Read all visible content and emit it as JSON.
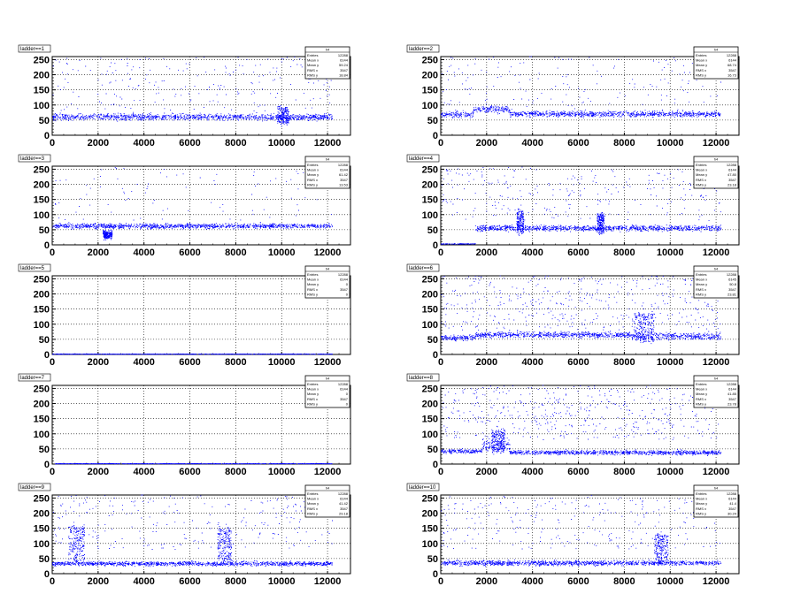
{
  "chart_data": [
    {
      "type": "scatter",
      "title": "ladder==1",
      "xlim": [
        0,
        13000
      ],
      "ylim": [
        0,
        260
      ],
      "xticks": [
        0,
        2000,
        4000,
        6000,
        8000,
        10000,
        12000
      ],
      "yticks": [
        0,
        50,
        100,
        150,
        200,
        250
      ],
      "grid": true,
      "stats": {
        "name": "h4",
        "rows": [
          [
            "Entries",
            "12288"
          ],
          [
            "Mean x",
            "6144"
          ],
          [
            "Mean y",
            "59.24"
          ],
          [
            "RMS x",
            "3547"
          ],
          [
            "RMS y",
            "18.84"
          ]
        ]
      },
      "bands": [
        {
          "x0": 0,
          "x1": 12200,
          "y": 60,
          "spread": 9,
          "density": 1
        }
      ],
      "bumps": [
        {
          "x0": 9800,
          "x1": 10300,
          "y": 90
        }
      ],
      "outliers": 220
    },
    {
      "type": "scatter",
      "title": "ladder==2",
      "xlim": [
        0,
        13000
      ],
      "ylim": [
        0,
        260
      ],
      "xticks": [
        0,
        2000,
        4000,
        6000,
        8000,
        10000,
        12000
      ],
      "yticks": [
        0,
        50,
        100,
        150,
        200,
        250
      ],
      "grid": true,
      "stats": {
        "name": "h4",
        "rows": [
          [
            "Entries",
            "12288"
          ],
          [
            "Mean x",
            "6144"
          ],
          [
            "Mean y",
            "68.74"
          ],
          [
            "RMS x",
            "3547"
          ],
          [
            "RMS y",
            "16.73"
          ]
        ]
      },
      "bands": [
        {
          "x0": 0,
          "x1": 1400,
          "y": 68,
          "spread": 8,
          "density": 1
        },
        {
          "x0": 1400,
          "x1": 3000,
          "y": 85,
          "spread": 10,
          "density": 1
        },
        {
          "x0": 3000,
          "x1": 12200,
          "y": 70,
          "spread": 8,
          "density": 1
        }
      ],
      "bumps": [],
      "outliers": 160
    },
    {
      "type": "scatter",
      "title": "ladder==3",
      "xlim": [
        0,
        13000
      ],
      "ylim": [
        0,
        260
      ],
      "xticks": [
        0,
        2000,
        4000,
        6000,
        8000,
        10000,
        12000
      ],
      "yticks": [
        0,
        50,
        100,
        150,
        200,
        250
      ],
      "grid": true,
      "stats": {
        "name": "h4",
        "rows": [
          [
            "Entries",
            "12288"
          ],
          [
            "Mean x",
            "6144"
          ],
          [
            "Mean y",
            "61.42"
          ],
          [
            "RMS x",
            "3547"
          ],
          [
            "RMS y",
            "13.53"
          ]
        ]
      },
      "bands": [
        {
          "x0": 0,
          "x1": 12200,
          "y": 62,
          "spread": 7,
          "density": 1
        }
      ],
      "bumps": [
        {
          "x0": 2200,
          "x1": 2600,
          "y": 25
        }
      ],
      "outliers": 90
    },
    {
      "type": "scatter",
      "title": "ladder==4",
      "xlim": [
        0,
        13000
      ],
      "ylim": [
        0,
        260
      ],
      "xticks": [
        0,
        2000,
        4000,
        6000,
        8000,
        10000,
        12000
      ],
      "yticks": [
        0,
        50,
        100,
        150,
        200,
        250
      ],
      "grid": true,
      "stats": {
        "name": "h4",
        "rows": [
          [
            "Entries",
            "12288"
          ],
          [
            "Mean x",
            "6144"
          ],
          [
            "Mean y",
            "47.80"
          ],
          [
            "RMS x",
            "3547"
          ],
          [
            "RMS y",
            "23.18"
          ]
        ]
      },
      "bands": [
        {
          "x0": 0,
          "x1": 1500,
          "y": 3,
          "spread": 1,
          "density": 0.6
        },
        {
          "x0": 1500,
          "x1": 12200,
          "y": 55,
          "spread": 8,
          "density": 1
        }
      ],
      "bumps": [
        {
          "x0": 3300,
          "x1": 3600,
          "y": 110
        },
        {
          "x0": 6800,
          "x1": 7100,
          "y": 100
        }
      ],
      "outliers": 260
    },
    {
      "type": "scatter",
      "title": "ladder==5",
      "xlim": [
        0,
        13000
      ],
      "ylim": [
        0,
        260
      ],
      "xticks": [
        0,
        2000,
        4000,
        6000,
        8000,
        10000,
        12000
      ],
      "yticks": [
        0,
        50,
        100,
        150,
        200,
        250
      ],
      "grid": true,
      "stats": {
        "name": "h4",
        "rows": [
          [
            "Entries",
            "12288"
          ],
          [
            "Mean x",
            "6144"
          ],
          [
            "Mean y",
            "0"
          ],
          [
            "RMS x",
            "3547"
          ],
          [
            "RMS y",
            "0"
          ]
        ]
      },
      "bands": [
        {
          "x0": 0,
          "x1": 12200,
          "y": 1,
          "spread": 0.5,
          "density": 0.8
        }
      ],
      "bumps": [],
      "outliers": 0
    },
    {
      "type": "scatter",
      "title": "ladder==6",
      "xlim": [
        0,
        13000
      ],
      "ylim": [
        0,
        260
      ],
      "xticks": [
        0,
        2000,
        4000,
        6000,
        8000,
        10000,
        12000
      ],
      "yticks": [
        0,
        50,
        100,
        150,
        200,
        250
      ],
      "grid": true,
      "stats": {
        "name": "h4",
        "rows": [
          [
            "Entries",
            "12288"
          ],
          [
            "Mean x",
            "6145"
          ],
          [
            "Mean y",
            "50.8"
          ],
          [
            "RMS x",
            "3547"
          ],
          [
            "RMS y",
            "23.81"
          ]
        ]
      },
      "bands": [
        {
          "x0": 0,
          "x1": 1500,
          "y": 55,
          "spread": 8,
          "density": 1
        },
        {
          "x0": 1500,
          "x1": 8300,
          "y": 65,
          "spread": 8,
          "density": 1
        },
        {
          "x0": 8300,
          "x1": 12200,
          "y": 60,
          "spread": 10,
          "density": 1
        }
      ],
      "bumps": [
        {
          "x0": 8400,
          "x1": 9300,
          "y": 140
        }
      ],
      "outliers": 420
    },
    {
      "type": "scatter",
      "title": "ladder==7",
      "xlim": [
        0,
        13000
      ],
      "ylim": [
        0,
        260
      ],
      "xticks": [
        0,
        2000,
        4000,
        6000,
        8000,
        10000,
        12000
      ],
      "yticks": [
        0,
        50,
        100,
        150,
        200,
        250
      ],
      "grid": true,
      "stats": {
        "name": "h4",
        "rows": [
          [
            "Entries",
            "12288"
          ],
          [
            "Mean x",
            "6144"
          ],
          [
            "Mean y",
            "0"
          ],
          [
            "RMS x",
            "3547"
          ],
          [
            "RMS y",
            "0"
          ]
        ]
      },
      "bands": [
        {
          "x0": 0,
          "x1": 12200,
          "y": 1,
          "spread": 0.5,
          "density": 0.8
        }
      ],
      "bumps": [],
      "outliers": 0
    },
    {
      "type": "scatter",
      "title": "ladder==8",
      "xlim": [
        0,
        13000
      ],
      "ylim": [
        0,
        260
      ],
      "xticks": [
        0,
        2000,
        4000,
        6000,
        8000,
        10000,
        12000
      ],
      "yticks": [
        0,
        50,
        100,
        150,
        200,
        250
      ],
      "grid": true,
      "stats": {
        "name": "h4",
        "rows": [
          [
            "Entries",
            "12288"
          ],
          [
            "Mean x",
            "6144"
          ],
          [
            "Mean y",
            "41.85"
          ],
          [
            "RMS x",
            "3547"
          ],
          [
            "RMS y",
            "23.78"
          ]
        ]
      },
      "bands": [
        {
          "x0": 0,
          "x1": 1800,
          "y": 42,
          "spread": 6,
          "density": 1
        },
        {
          "x0": 1800,
          "x1": 3000,
          "y": 60,
          "spread": 15,
          "density": 1
        },
        {
          "x0": 3000,
          "x1": 12200,
          "y": 38,
          "spread": 6,
          "density": 1
        }
      ],
      "bumps": [
        {
          "x0": 2200,
          "x1": 2800,
          "y": 110
        }
      ],
      "outliers": 480
    },
    {
      "type": "scatter",
      "title": "ladder==9",
      "xlim": [
        0,
        13000
      ],
      "ylim": [
        0,
        260
      ],
      "xticks": [
        0,
        2000,
        4000,
        6000,
        8000,
        10000,
        12000
      ],
      "yticks": [
        0,
        50,
        100,
        150,
        200,
        250
      ],
      "grid": true,
      "stats": {
        "name": "h4",
        "rows": [
          [
            "Entries",
            "12288"
          ],
          [
            "Mean x",
            "6144"
          ],
          [
            "Mean y",
            "41.42"
          ],
          [
            "RMS x",
            "3547"
          ],
          [
            "RMS y",
            "29.18"
          ]
        ]
      },
      "bands": [
        {
          "x0": 0,
          "x1": 12200,
          "y": 33,
          "spread": 6,
          "density": 1
        }
      ],
      "bumps": [
        {
          "x0": 700,
          "x1": 1400,
          "y": 160
        },
        {
          "x0": 7200,
          "x1": 7800,
          "y": 150
        }
      ],
      "outliers": 260
    },
    {
      "type": "scatter",
      "title": "ladder==10",
      "xlim": [
        0,
        13000
      ],
      "ylim": [
        0,
        260
      ],
      "xticks": [
        0,
        2000,
        4000,
        6000,
        8000,
        10000,
        12000
      ],
      "yticks": [
        0,
        50,
        100,
        150,
        200,
        250
      ],
      "grid": true,
      "stats": {
        "name": "h4",
        "rows": [
          [
            "Entries",
            "12288"
          ],
          [
            "Mean x",
            "6144"
          ],
          [
            "Mean y",
            "41.4"
          ],
          [
            "RMS x",
            "3547"
          ],
          [
            "RMS y",
            "30.24"
          ]
        ]
      },
      "bands": [
        {
          "x0": 0,
          "x1": 12200,
          "y": 35,
          "spread": 7,
          "density": 1
        }
      ],
      "bumps": [
        {
          "x0": 9300,
          "x1": 9900,
          "y": 130
        }
      ],
      "outliers": 260
    }
  ]
}
